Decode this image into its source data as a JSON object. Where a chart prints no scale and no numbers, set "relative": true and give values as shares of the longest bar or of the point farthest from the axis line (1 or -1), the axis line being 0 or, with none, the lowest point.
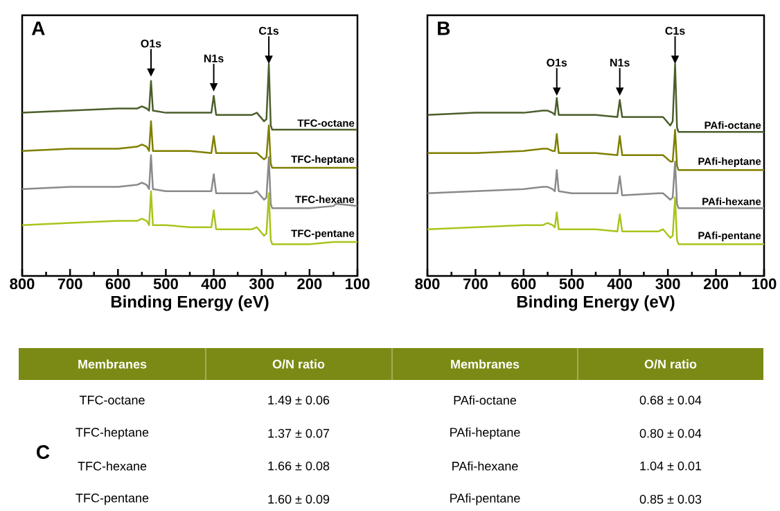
{
  "chart_data": [
    {
      "type": "line",
      "title": "A",
      "xlabel": "Binding Energy (eV)",
      "relative": true,
      "x": [
        800,
        700,
        600,
        560,
        550,
        540,
        535,
        531,
        527,
        500,
        450,
        405,
        400,
        395,
        320,
        310,
        295,
        290,
        285,
        281,
        278,
        200,
        150,
        145,
        100
      ],
      "xlim": [
        800,
        100
      ],
      "xticks": [
        800,
        {
          "value": 750,
          "label": null
        },
        700,
        {
          "value": 650,
          "label": null
        },
        600,
        {
          "value": 550,
          "label": null
        },
        500,
        {
          "value": 450,
          "label": null
        },
        400,
        {
          "value": 350,
          "label": null
        },
        300,
        {
          "value": 250,
          "label": null
        },
        200,
        {
          "value": 150,
          "label": null
        },
        100
      ],
      "series": [
        {
          "name": "TFC-octane",
          "color": "#4b5e2b",
          "values": [
            0.77,
            0.78,
            0.79,
            0.79,
            0.8,
            0.79,
            0.78,
            0.92,
            0.78,
            0.77,
            0.77,
            0.77,
            0.85,
            0.76,
            0.76,
            0.77,
            0.73,
            0.74,
            1.0,
            0.71,
            0.69,
            0.69,
            0.69,
            0.69,
            0.69
          ]
        },
        {
          "name": "TFC-heptane",
          "color": "#7f7f00",
          "values": [
            0.59,
            0.6,
            0.6,
            0.61,
            0.62,
            0.61,
            0.59,
            0.73,
            0.59,
            0.59,
            0.59,
            0.58,
            0.66,
            0.58,
            0.58,
            0.58,
            0.55,
            0.56,
            0.71,
            0.53,
            0.51,
            0.51,
            0.51,
            0.51,
            0.51
          ]
        },
        {
          "name": "TFC-hexane",
          "color": "#8a8a8a",
          "values": [
            0.41,
            0.42,
            0.42,
            0.43,
            0.44,
            0.43,
            0.41,
            0.57,
            0.41,
            0.4,
            0.4,
            0.4,
            0.48,
            0.39,
            0.39,
            0.4,
            0.36,
            0.37,
            0.56,
            0.34,
            0.32,
            0.32,
            0.33,
            0.34,
            0.33
          ]
        },
        {
          "name": "TFC-pentane",
          "color": "#a9c41c",
          "values": [
            0.24,
            0.25,
            0.26,
            0.26,
            0.27,
            0.26,
            0.24,
            0.4,
            0.24,
            0.24,
            0.23,
            0.23,
            0.31,
            0.22,
            0.22,
            0.23,
            0.19,
            0.2,
            0.39,
            0.17,
            0.15,
            0.15,
            0.16,
            0.16,
            0.16
          ]
        }
      ],
      "annotations": [
        {
          "text": "O1s",
          "x": 531,
          "y": 0.94
        },
        {
          "text": "N1s",
          "x": 400,
          "y": 0.87
        },
        {
          "text": "C1s",
          "x": 285,
          "y": 1.0
        }
      ]
    },
    {
      "type": "line",
      "title": "B",
      "xlabel": "Binding Energy (eV)",
      "relative": true,
      "x": [
        800,
        700,
        600,
        560,
        550,
        540,
        535,
        531,
        527,
        500,
        450,
        405,
        400,
        395,
        320,
        310,
        295,
        290,
        285,
        281,
        278,
        200,
        150,
        145,
        100
      ],
      "xlim": [
        800,
        100
      ],
      "xticks": [
        800,
        {
          "value": 750,
          "label": null
        },
        700,
        {
          "value": 650,
          "label": null
        },
        600,
        {
          "value": 550,
          "label": null
        },
        500,
        {
          "value": 450,
          "label": null
        },
        400,
        {
          "value": 350,
          "label": null
        },
        300,
        {
          "value": 250,
          "label": null
        },
        200,
        {
          "value": 150,
          "label": null
        },
        100
      ],
      "series": [
        {
          "name": "PAfi-octane",
          "color": "#4b5e2b",
          "values": [
            0.76,
            0.77,
            0.77,
            0.78,
            0.78,
            0.77,
            0.76,
            0.84,
            0.76,
            0.76,
            0.76,
            0.75,
            0.83,
            0.75,
            0.75,
            0.75,
            0.71,
            0.73,
            1.0,
            0.7,
            0.68,
            0.68,
            0.68,
            0.68,
            0.68
          ]
        },
        {
          "name": "PAfi-heptane",
          "color": "#7f7f00",
          "values": [
            0.58,
            0.58,
            0.59,
            0.6,
            0.6,
            0.59,
            0.59,
            0.67,
            0.58,
            0.58,
            0.58,
            0.57,
            0.66,
            0.57,
            0.57,
            0.57,
            0.54,
            0.54,
            0.69,
            0.52,
            0.5,
            0.5,
            0.5,
            0.5,
            0.5
          ]
        },
        {
          "name": "PAfi-hexane",
          "color": "#8a8a8a",
          "values": [
            0.39,
            0.4,
            0.41,
            0.42,
            0.42,
            0.41,
            0.4,
            0.5,
            0.4,
            0.39,
            0.39,
            0.39,
            0.47,
            0.38,
            0.39,
            0.39,
            0.36,
            0.37,
            0.54,
            0.34,
            0.32,
            0.32,
            0.32,
            0.32,
            0.32
          ]
        },
        {
          "name": "PAfi-pentane",
          "color": "#a9c41c",
          "values": [
            0.22,
            0.23,
            0.24,
            0.24,
            0.25,
            0.24,
            0.23,
            0.3,
            0.22,
            0.22,
            0.22,
            0.21,
            0.29,
            0.21,
            0.21,
            0.22,
            0.18,
            0.19,
            0.37,
            0.17,
            0.15,
            0.15,
            0.15,
            0.15,
            0.15
          ]
        }
      ],
      "annotations": [
        {
          "text": "O1s",
          "x": 531,
          "y": 0.85
        },
        {
          "text": "N1s",
          "x": 400,
          "y": 0.85
        },
        {
          "text": "C1s",
          "x": 285,
          "y": 1.0
        }
      ]
    },
    {
      "type": "other",
      "title": "C",
      "annotations": [
        "Membranes",
        "O/N  ratio",
        "Membranes",
        "O/N ratio",
        "TFC-octane",
        "1.49 ± 0.06",
        "PAfi-octane",
        "0.68 ± 0.04",
        "TFC-heptane",
        "1.37 ± 0.07",
        "PAfi-heptane",
        "0.80 ± 0.04",
        "TFC-hexane",
        "1.66 ± 0.08",
        "PAfi-hexane",
        "1.04 ± 0.01",
        "TFC-pentane",
        "1.60 ± 0.09",
        "PAfi-pentane",
        "0.85 ± 0.03"
      ]
    }
  ]
}
